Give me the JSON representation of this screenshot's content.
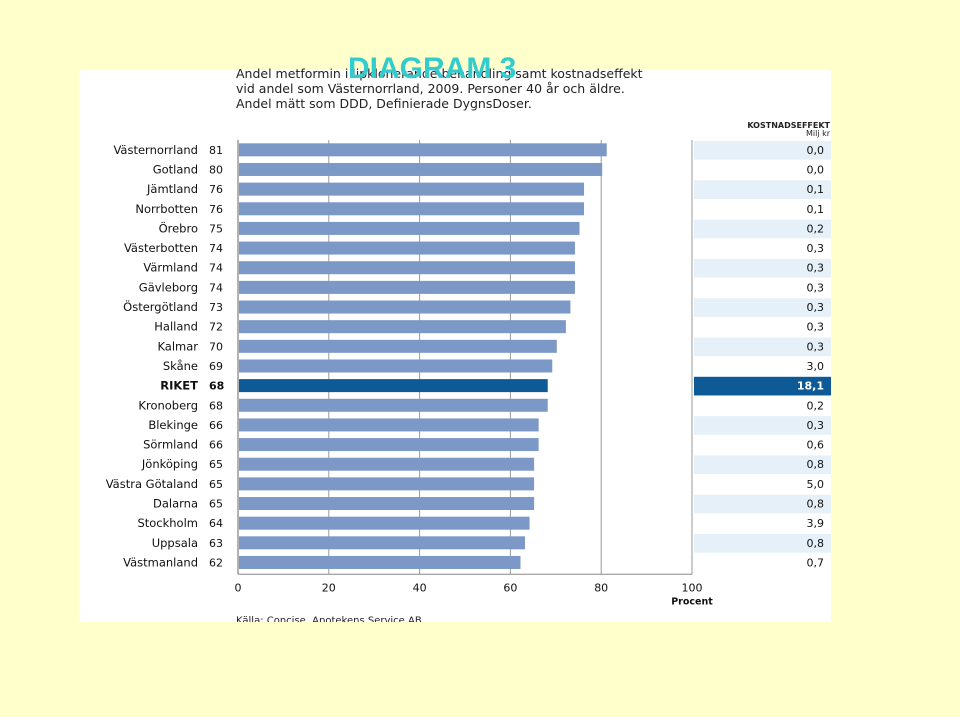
{
  "slide": {
    "title": "DIAGRAM 3"
  },
  "chart_data": {
    "type": "bar",
    "orientation": "horizontal",
    "title_lines": [
      "Andel metformin i lipklonerande behandling samt kostnadseffekt",
      "vid andel som Västernorrland, 2009. Personer 40 år och äldre.",
      "Andel mätt som DDD, Definierade DygnsDoser."
    ],
    "categories": [
      "Västernorrland",
      "Gotland",
      "Jämtland",
      "Norrbotten",
      "Örebro",
      "Västerbotten",
      "Värmland",
      "Gävleborg",
      "Östergötland",
      "Halland",
      "Kalmar",
      "Skåne",
      "RIKET",
      "Kronoberg",
      "Blekinge",
      "Sörmland",
      "Jönköping",
      "Västra Götaland",
      "Dalarna",
      "Stockholm",
      "Uppsala",
      "Västmanland"
    ],
    "values": [
      81,
      80,
      76,
      76,
      75,
      74,
      74,
      74,
      73,
      72,
      70,
      69,
      68,
      68,
      66,
      66,
      65,
      65,
      65,
      64,
      63,
      62
    ],
    "value_labels": [
      "81",
      "80",
      "76",
      "76",
      "75",
      "74",
      "74",
      "74",
      "73",
      "72",
      "70",
      "69",
      "68",
      "68",
      "66",
      "66",
      "65",
      "65",
      "65",
      "64",
      "63",
      "62"
    ],
    "highlight_category": "RIKET",
    "cost_header": "KOSTNADSEFFEKT",
    "cost_unit": "Milj kr",
    "cost_effect": [
      "0,0",
      "0,0",
      "0,1",
      "0,1",
      "0,2",
      "0,3",
      "0,3",
      "0,3",
      "0,3",
      "0,3",
      "0,3",
      "3,0",
      "18,1",
      "0,2",
      "0,3",
      "0,6",
      "0,8",
      "5,0",
      "0,8",
      "3,9",
      "0,8",
      "0,7"
    ],
    "x_ticks": [
      "0",
      "20",
      "40",
      "60",
      "80",
      "100"
    ],
    "xlim": [
      0,
      100
    ],
    "xlabel": "Procent",
    "source": "Källa: Concise, Apotekens Service AB.",
    "colors": {
      "bar": "#7b98c6",
      "highlight": "#0d5a96",
      "cost_band": "#e6f0f8",
      "cost_highlight": "#0d5a96",
      "grid": "#9a9a9a"
    },
    "grid": true
  }
}
